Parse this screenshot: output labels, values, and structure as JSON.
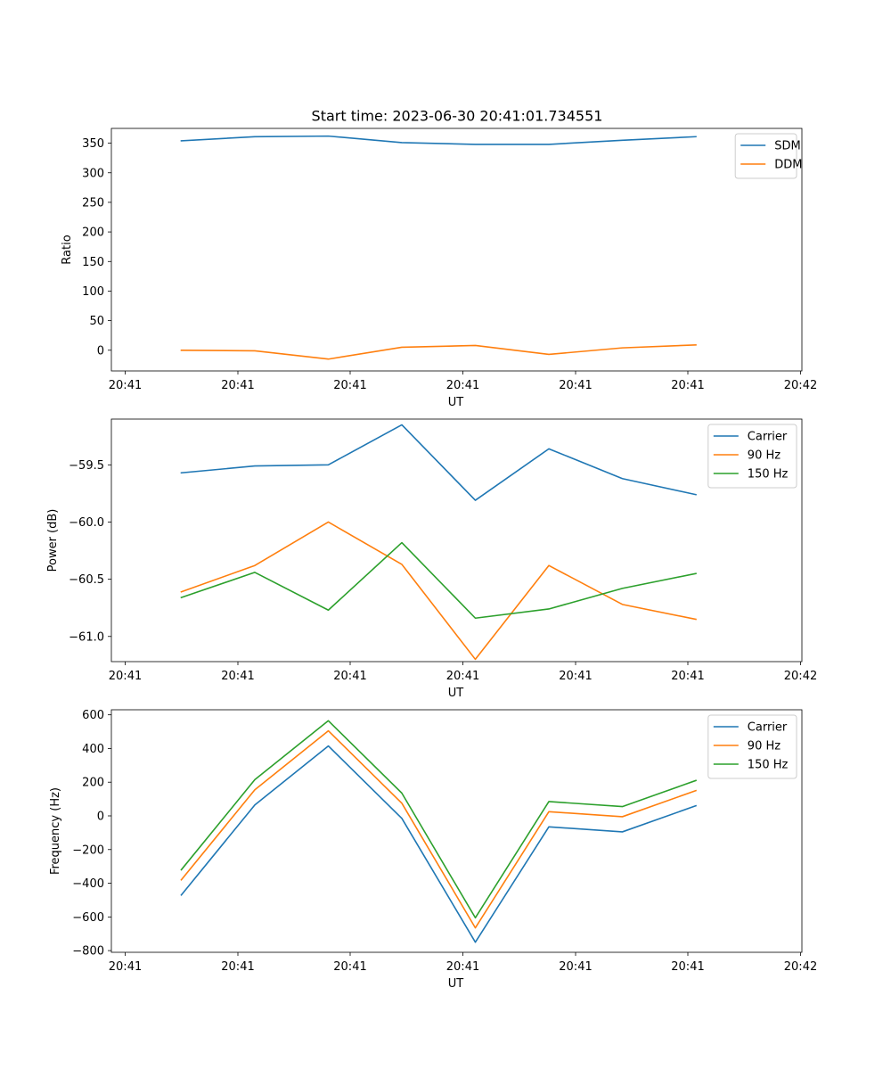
{
  "colors": {
    "blue": "#1f77b4",
    "orange": "#ff7f0e",
    "green": "#2ca02c"
  },
  "chart_data": [
    {
      "type": "line",
      "title": "Start time: 2023-06-30 20:41:01.734551",
      "xlabel": "UT",
      "ylabel": "Ratio",
      "xtick_labels": [
        "20:41",
        "20:41",
        "20:41",
        "20:41",
        "20:41",
        "20:41",
        "20:41",
        "20:42"
      ],
      "yticks": [
        "0",
        "50",
        "100",
        "150",
        "200",
        "250",
        "300",
        "350"
      ],
      "ylim": [
        -35,
        375
      ],
      "legend": "top-right",
      "series": [
        {
          "name": "SDM",
          "color": "#1f77b4",
          "values": [
            354,
            361,
            362,
            351,
            348,
            348,
            355,
            361
          ]
        },
        {
          "name": "DDM",
          "color": "#ff7f0e",
          "values": [
            0,
            -1,
            -15,
            5,
            8,
            -7,
            4,
            9
          ]
        }
      ]
    },
    {
      "type": "line",
      "title": "",
      "xlabel": "UT",
      "ylabel": "Power (dB)",
      "xtick_labels": [
        "20:41",
        "20:41",
        "20:41",
        "20:41",
        "20:41",
        "20:41",
        "20:41",
        "20:42"
      ],
      "yticks": [
        "−61.0",
        "−60.5",
        "−60.0",
        "−59.5"
      ],
      "ylim": [
        -61.22,
        -59.1
      ],
      "legend": "top-right",
      "series": [
        {
          "name": "Carrier",
          "color": "#1f77b4",
          "values": [
            -59.57,
            -59.51,
            -59.5,
            -59.15,
            -59.81,
            -59.36,
            -59.62,
            -59.76
          ]
        },
        {
          "name": "90 Hz",
          "color": "#ff7f0e",
          "values": [
            -60.61,
            -60.38,
            -60.0,
            -60.37,
            -61.2,
            -60.38,
            -60.72,
            -60.85
          ]
        },
        {
          "name": "150 Hz",
          "color": "#2ca02c",
          "values": [
            -60.66,
            -60.44,
            -60.77,
            -60.18,
            -60.84,
            -60.76,
            -60.58,
            -60.45
          ]
        }
      ]
    },
    {
      "type": "line",
      "title": "",
      "xlabel": "UT",
      "ylabel": "Frequency (Hz)",
      "xtick_labels": [
        "20:41",
        "20:41",
        "20:41",
        "20:41",
        "20:41",
        "20:41",
        "20:41",
        "20:42"
      ],
      "yticks": [
        "−800",
        "−600",
        "−400",
        "−200",
        "0",
        "200",
        "400",
        "600"
      ],
      "ylim": [
        -810,
        630
      ],
      "legend": "top-right",
      "series": [
        {
          "name": "Carrier",
          "color": "#1f77b4",
          "values": [
            -470,
            65,
            415,
            -15,
            -750,
            -65,
            -95,
            60
          ]
        },
        {
          "name": "90 Hz",
          "color": "#ff7f0e",
          "values": [
            -380,
            155,
            505,
            75,
            -665,
            25,
            -5,
            150
          ]
        },
        {
          "name": "150 Hz",
          "color": "#2ca02c",
          "values": [
            -320,
            215,
            565,
            135,
            -605,
            85,
            55,
            210
          ]
        }
      ]
    }
  ]
}
